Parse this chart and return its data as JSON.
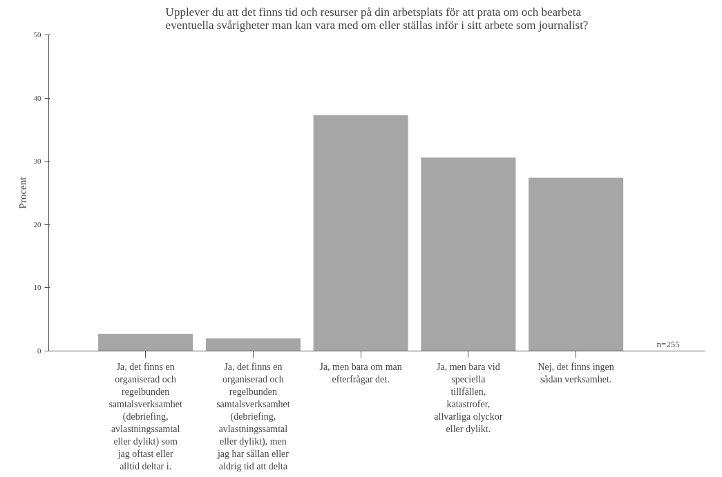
{
  "chart_data": {
    "type": "bar",
    "title": "Upplever du att det finns tid och resurser på din arbetsplats för att prata om och bearbeta eventuella svårigheter man kan vara med om eller ställas inför i sitt arbete som journalist?",
    "ylabel": "Procent",
    "categories": [
      "Ja, det finns en organiserad och regelbunden samtalsverksamhet (debriefing, avlastningssamtal eller dylikt) som jag oftast eller alltid deltar i.",
      "Ja, det finns en organiserad och regelbunden samtalsverksamhet (debriefing, avlastningssamtal eller dylikt), men jag har sällan eller aldrig tid att delta",
      "Ja, men bara om man efterfrågar det.",
      "Ja, men bara vid speciella tillfällen, katastrofer, allvarliga olyckor eller dylikt.",
      "Nej, det finns ingen sådan verksamhet."
    ],
    "values": [
      2.7,
      2.0,
      37.3,
      30.6,
      27.4
    ],
    "color": "#a6a6a6",
    "ylim": [
      0,
      50
    ],
    "yticks": [
      0,
      10,
      20,
      30,
      40,
      50
    ],
    "grid": false,
    "annotations": [
      "n=255"
    ]
  }
}
